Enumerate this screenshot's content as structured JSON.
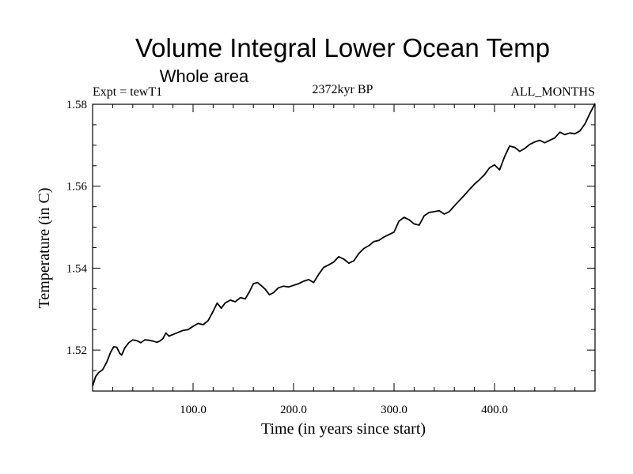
{
  "chart_data": {
    "type": "line",
    "title": "Volume Integral Lower Ocean Temp",
    "subtitle": "Whole area",
    "left_label": "Expt = tewT1",
    "center_label": "2372kyr BP",
    "right_label": "ALL_MONTHS",
    "xlabel": "Time (in years since start)",
    "ylabel": "Temperature (in C)",
    "xlim": [
      0,
      500
    ],
    "ylim": [
      1.51,
      1.58
    ],
    "x_ticks": [
      {
        "value": 100,
        "label": "100.0"
      },
      {
        "value": 200,
        "label": "200.0"
      },
      {
        "value": 300,
        "label": "300.0"
      },
      {
        "value": 400,
        "label": "400.0"
      }
    ],
    "y_ticks": [
      {
        "value": 1.52,
        "label": "1.52"
      },
      {
        "value": 1.54,
        "label": "1.54"
      },
      {
        "value": 1.56,
        "label": "1.56"
      },
      {
        "value": 1.58,
        "label": "1.58"
      }
    ],
    "series": [
      {
        "name": "tewT1",
        "points": [
          [
            0,
            1.5112
          ],
          [
            3,
            1.5135
          ],
          [
            6,
            1.5145
          ],
          [
            10,
            1.5152
          ],
          [
            14,
            1.517
          ],
          [
            18,
            1.5195
          ],
          [
            21,
            1.5208
          ],
          [
            24,
            1.5207
          ],
          [
            27,
            1.5192
          ],
          [
            29,
            1.5188
          ],
          [
            32,
            1.5205
          ],
          [
            36,
            1.5218
          ],
          [
            40,
            1.5225
          ],
          [
            44,
            1.5223
          ],
          [
            48,
            1.5218
          ],
          [
            52,
            1.5225
          ],
          [
            56,
            1.5224
          ],
          [
            60,
            1.5222
          ],
          [
            64,
            1.5219
          ],
          [
            67,
            1.5222
          ],
          [
            70,
            1.5228
          ],
          [
            73,
            1.5242
          ],
          [
            76,
            1.5234
          ],
          [
            80,
            1.5238
          ],
          [
            85,
            1.5243
          ],
          [
            90,
            1.5248
          ],
          [
            95,
            1.525
          ],
          [
            100,
            1.5258
          ],
          [
            105,
            1.5265
          ],
          [
            110,
            1.5262
          ],
          [
            115,
            1.5272
          ],
          [
            120,
            1.5295
          ],
          [
            124,
            1.5315
          ],
          [
            128,
            1.5302
          ],
          [
            132,
            1.5315
          ],
          [
            137,
            1.5322
          ],
          [
            142,
            1.5318
          ],
          [
            147,
            1.5328
          ],
          [
            152,
            1.5325
          ],
          [
            156,
            1.5342
          ],
          [
            160,
            1.5362
          ],
          [
            164,
            1.5365
          ],
          [
            168,
            1.5357
          ],
          [
            172,
            1.5348
          ],
          [
            176,
            1.5335
          ],
          [
            180,
            1.534
          ],
          [
            185,
            1.5352
          ],
          [
            190,
            1.5356
          ],
          [
            195,
            1.5354
          ],
          [
            200,
            1.5358
          ],
          [
            205,
            1.5362
          ],
          [
            210,
            1.5368
          ],
          [
            215,
            1.5372
          ],
          [
            220,
            1.5365
          ],
          [
            225,
            1.5385
          ],
          [
            230,
            1.5402
          ],
          [
            235,
            1.5408
          ],
          [
            240,
            1.5415
          ],
          [
            245,
            1.5428
          ],
          [
            250,
            1.5422
          ],
          [
            255,
            1.5412
          ],
          [
            260,
            1.5418
          ],
          [
            265,
            1.5436
          ],
          [
            270,
            1.5448
          ],
          [
            275,
            1.5455
          ],
          [
            280,
            1.5465
          ],
          [
            285,
            1.5468
          ],
          [
            290,
            1.5476
          ],
          [
            295,
            1.5482
          ],
          [
            300,
            1.5488
          ],
          [
            305,
            1.5515
          ],
          [
            310,
            1.5524
          ],
          [
            315,
            1.5518
          ],
          [
            320,
            1.5508
          ],
          [
            325,
            1.5505
          ],
          [
            330,
            1.5528
          ],
          [
            335,
            1.5536
          ],
          [
            340,
            1.5538
          ],
          [
            345,
            1.554
          ],
          [
            350,
            1.5532
          ],
          [
            355,
            1.5538
          ],
          [
            360,
            1.5552
          ],
          [
            365,
            1.5565
          ],
          [
            370,
            1.5578
          ],
          [
            375,
            1.5592
          ],
          [
            380,
            1.5605
          ],
          [
            385,
            1.5616
          ],
          [
            390,
            1.5628
          ],
          [
            395,
            1.5645
          ],
          [
            400,
            1.5652
          ],
          [
            405,
            1.564
          ],
          [
            410,
            1.5672
          ],
          [
            415,
            1.5698
          ],
          [
            420,
            1.5695
          ],
          [
            425,
            1.5685
          ],
          [
            430,
            1.5692
          ],
          [
            435,
            1.5702
          ],
          [
            440,
            1.5708
          ],
          [
            445,
            1.5712
          ],
          [
            450,
            1.5706
          ],
          [
            455,
            1.5712
          ],
          [
            460,
            1.5718
          ],
          [
            465,
            1.5732
          ],
          [
            470,
            1.5726
          ],
          [
            475,
            1.573
          ],
          [
            480,
            1.5728
          ],
          [
            485,
            1.5735
          ],
          [
            490,
            1.5752
          ],
          [
            495,
            1.5778
          ],
          [
            500,
            1.5802
          ]
        ]
      }
    ]
  }
}
